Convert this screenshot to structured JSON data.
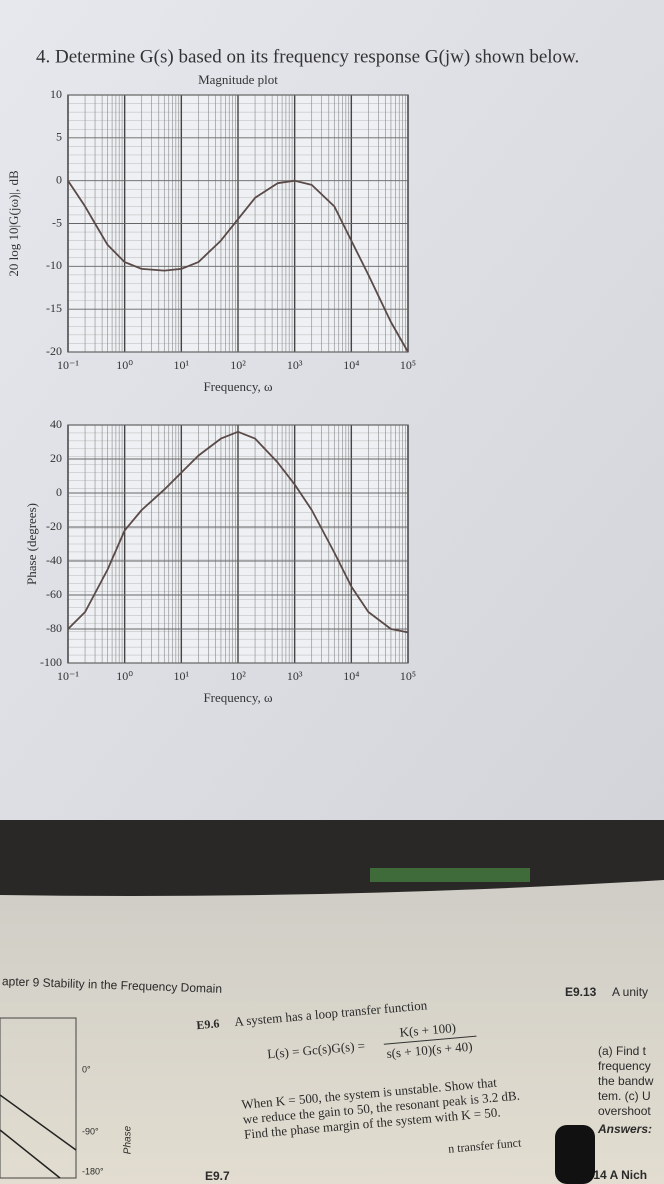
{
  "heading": "4. Determine G(s) based on its frequency response G(jw) shown below.",
  "chart_data": [
    {
      "type": "line",
      "title": "Magnitude plot",
      "x_label": "Frequency, ω",
      "y_label": "20 log 10|G(jω)|, dB",
      "x": [
        0.1,
        0.2,
        0.3,
        0.5,
        1,
        2,
        5,
        10,
        20,
        50,
        100,
        200,
        500,
        1000,
        2000,
        5000,
        10000,
        20000,
        50000,
        100000
      ],
      "values": [
        0,
        -3,
        -5,
        -7.5,
        -9.5,
        -10.3,
        -10.5,
        -10.3,
        -9.5,
        -7,
        -4.5,
        -2,
        -0.3,
        0,
        -0.5,
        -3,
        -7,
        -11,
        -16.5,
        -20
      ],
      "color": "#5a4a48",
      "xscale": "log",
      "grid": true,
      "xlim": [
        0.1,
        100000
      ],
      "xticks": [
        {
          "value": 0.1,
          "label": "10⁻¹"
        },
        {
          "value": 1,
          "label": "10⁰"
        },
        {
          "value": 10,
          "label": "10¹"
        },
        {
          "value": 100,
          "label": "10²"
        },
        {
          "value": 1000,
          "label": "10³"
        },
        {
          "value": 10000,
          "label": "10⁴"
        },
        {
          "value": 100000,
          "label": "10⁵"
        }
      ],
      "ylim": [
        -20,
        10
      ],
      "yticks": [
        -20,
        -15,
        -10,
        -5,
        0,
        5,
        10
      ]
    },
    {
      "type": "line",
      "x_label": "Frequency, ω",
      "y_label": "Phase (degrees)",
      "x": [
        0.1,
        0.2,
        0.5,
        1,
        2,
        5,
        10,
        20,
        50,
        100,
        200,
        500,
        1000,
        2000,
        5000,
        10000,
        20000,
        50000,
        100000
      ],
      "values": [
        -80,
        -70,
        -45,
        -22,
        -10,
        2,
        12,
        22,
        32,
        36,
        32,
        18,
        5,
        -10,
        -35,
        -55,
        -70,
        -80,
        -82
      ],
      "color": "#5a4a48",
      "xscale": "log",
      "grid": true,
      "xlim": [
        0.1,
        100000
      ],
      "xticks": [
        {
          "value": 0.1,
          "label": "10⁻¹"
        },
        {
          "value": 1,
          "label": "10⁰"
        },
        {
          "value": 10,
          "label": "10¹"
        },
        {
          "value": 100,
          "label": "10²"
        },
        {
          "value": 1000,
          "label": "10³"
        },
        {
          "value": 10000,
          "label": "10⁴"
        },
        {
          "value": 100000,
          "label": "10⁵"
        }
      ],
      "ylim": [
        -100,
        40
      ],
      "yticks": [
        -100,
        -80,
        -60,
        -40,
        -20,
        0,
        20,
        40
      ]
    }
  ],
  "book": {
    "header": "apter 9  Stability in the Frequency Domain",
    "e913": "E9.13",
    "e913_text": "A unity",
    "e96": "E9.6",
    "e96_text": "A system has a loop transfer function",
    "eq_lhs": "L(s) = Gc(s)G(s) =",
    "eq_num": "K(s + 100)",
    "eq_den": "s(s + 10)(s + 40)",
    "line1": "When K = 500, the system is unstable. Show that",
    "line2": "we reduce the gain to 50, the resonant peak is 3.2 dB.",
    "line3": "Find the phase margin of the system with K = 50.",
    "line4": "n transfer funct",
    "e97": "E9.7",
    "right": [
      "(a) Find t",
      "frequency",
      "the bandw",
      "tem. (c) U",
      "overshoot"
    ],
    "answers": "Answers:",
    "e914": ".14  A Nich",
    "left_ticks": [
      "0°",
      "-90°",
      "-180°"
    ],
    "left_axis": "Phase"
  }
}
